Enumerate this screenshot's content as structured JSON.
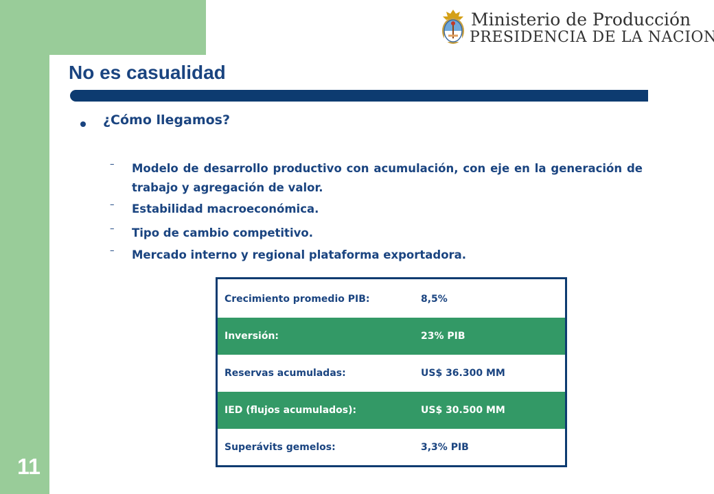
{
  "slide": {
    "page_number": "11",
    "title": "No es casualidad"
  },
  "logo": {
    "line1": "Ministerio de Producción",
    "line2": "PRESIDENCIA DE LA NACION",
    "icon": "coat-of-arms-icon"
  },
  "bullet": {
    "heading": "¿Cómo llegamos?",
    "items": [
      "Modelo de desarrollo productivo con acumulación, con eje en la generación de trabajo y agregación de valor.",
      "Estabilidad macroeconómica.",
      "Tipo de cambio competitivo.",
      "Mercado interno y regional plataforma exportadora."
    ]
  },
  "stats_table": {
    "rows": [
      {
        "label": "Crecimiento promedio PIB:",
        "value": "8,5%"
      },
      {
        "label": "Inversión:",
        "value": "23% PIB"
      },
      {
        "label": "Reservas acumuladas:",
        "value": "US$ 36.300 MM"
      },
      {
        "label": "IED (flujos acumulados):",
        "value": "US$ 30.500 MM"
      },
      {
        "label": "Superávits gemelos:",
        "value": "3,3% PIB"
      }
    ]
  },
  "colors": {
    "accent_green": "#99cc99",
    "row_green": "#339966",
    "navy": "#0d3b70",
    "text_blue": "#1a4480"
  }
}
